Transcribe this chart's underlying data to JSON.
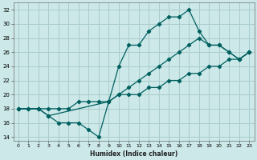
{
  "xlabel": "Humidex (Indice chaleur)",
  "bg_color": "#cce8e8",
  "grid_color": "#aacccc",
  "line_color": "#006060",
  "xlim": [
    -0.5,
    23.5
  ],
  "ylim": [
    13.5,
    33.0
  ],
  "xticks": [
    0,
    1,
    2,
    3,
    4,
    5,
    6,
    7,
    8,
    9,
    10,
    11,
    12,
    13,
    14,
    15,
    16,
    17,
    18,
    19,
    20,
    21,
    22,
    23
  ],
  "yticks": [
    14,
    16,
    18,
    20,
    22,
    24,
    26,
    28,
    30,
    32
  ],
  "line_straight_x": [
    0,
    1,
    2,
    3,
    4,
    5,
    6,
    7,
    8,
    9,
    10,
    11,
    12,
    13,
    14,
    15,
    16,
    17,
    18,
    19,
    20,
    21,
    22,
    23
  ],
  "line_straight_y": [
    18,
    18,
    18,
    18,
    18,
    18,
    19,
    19,
    19,
    19,
    20,
    20,
    20,
    21,
    21,
    22,
    22,
    23,
    23,
    24,
    24,
    25,
    25,
    26
  ],
  "line_high_x": [
    0,
    1,
    2,
    3,
    4,
    5,
    6,
    7,
    8,
    9,
    10,
    11,
    12,
    13,
    14,
    15,
    16,
    17,
    18,
    19,
    20,
    21,
    22,
    23
  ],
  "line_high_y": [
    18,
    18,
    18,
    17,
    16,
    16,
    16,
    15,
    14,
    19,
    24,
    27,
    27,
    29,
    30,
    31,
    31,
    32,
    29,
    27,
    27,
    26,
    25,
    26
  ],
  "line_mid_x": [
    0,
    2,
    3,
    9,
    10,
    11,
    12,
    13,
    14,
    15,
    16,
    17,
    18,
    19,
    20,
    21,
    22,
    23
  ],
  "line_mid_y": [
    18,
    18,
    17,
    19,
    20,
    21,
    22,
    23,
    24,
    25,
    26,
    27,
    28,
    27,
    27,
    26,
    25,
    26
  ]
}
